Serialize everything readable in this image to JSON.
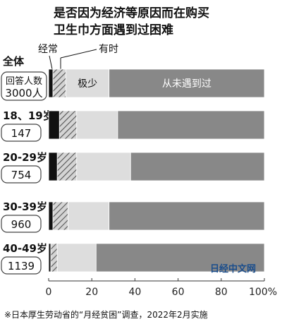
{
  "title": {
    "line1": "是否因为经济等原因而在购买",
    "line2": "卫生巾方面遇到过困难"
  },
  "legend": {
    "often": "经常",
    "sometimes": "有时"
  },
  "watermark": "日经中文网",
  "source": "※日本厚生劳动省的“月经贫困”调查，2022年2月实施",
  "colors": {
    "often": "#111111",
    "sometimes_bg": "#d4d4d4",
    "sometimes_hatch": "#555555",
    "rarely": "#dddddd",
    "never": "#888888",
    "count_box_border": "#444444"
  },
  "chart_data": {
    "type": "bar",
    "orientation": "horizontal",
    "stacked": true,
    "categories": [
      "全体",
      "18、19岁",
      "20-29岁",
      "30-39岁",
      "40-49岁"
    ],
    "respondents": [
      "3000人",
      "147",
      "754",
      "960",
      "1139"
    ],
    "respondents_label": "回答人数",
    "series": [
      {
        "name": "经常",
        "values": [
          2,
          5,
          4,
          2,
          1
        ],
        "color": "#111111",
        "pattern": "solid"
      },
      {
        "name": "有时",
        "values": [
          6,
          8,
          9,
          7,
          3
        ],
        "color": "#d4d4d4",
        "pattern": "hatch"
      },
      {
        "name": "极少",
        "values": [
          20,
          19,
          25,
          19,
          18
        ],
        "color": "#dddddd",
        "pattern": "solid"
      },
      {
        "name": "从未遇到过",
        "values": [
          72,
          68,
          62,
          72,
          78
        ],
        "color": "#888888",
        "pattern": "solid"
      }
    ],
    "segment_labels_first_row": {
      "rarely": "极少",
      "never": "从未遇到过"
    },
    "xlim": [
      0,
      100
    ],
    "xticks": [
      "0",
      "20",
      "40",
      "60",
      "80",
      "100%"
    ],
    "grid": false
  }
}
